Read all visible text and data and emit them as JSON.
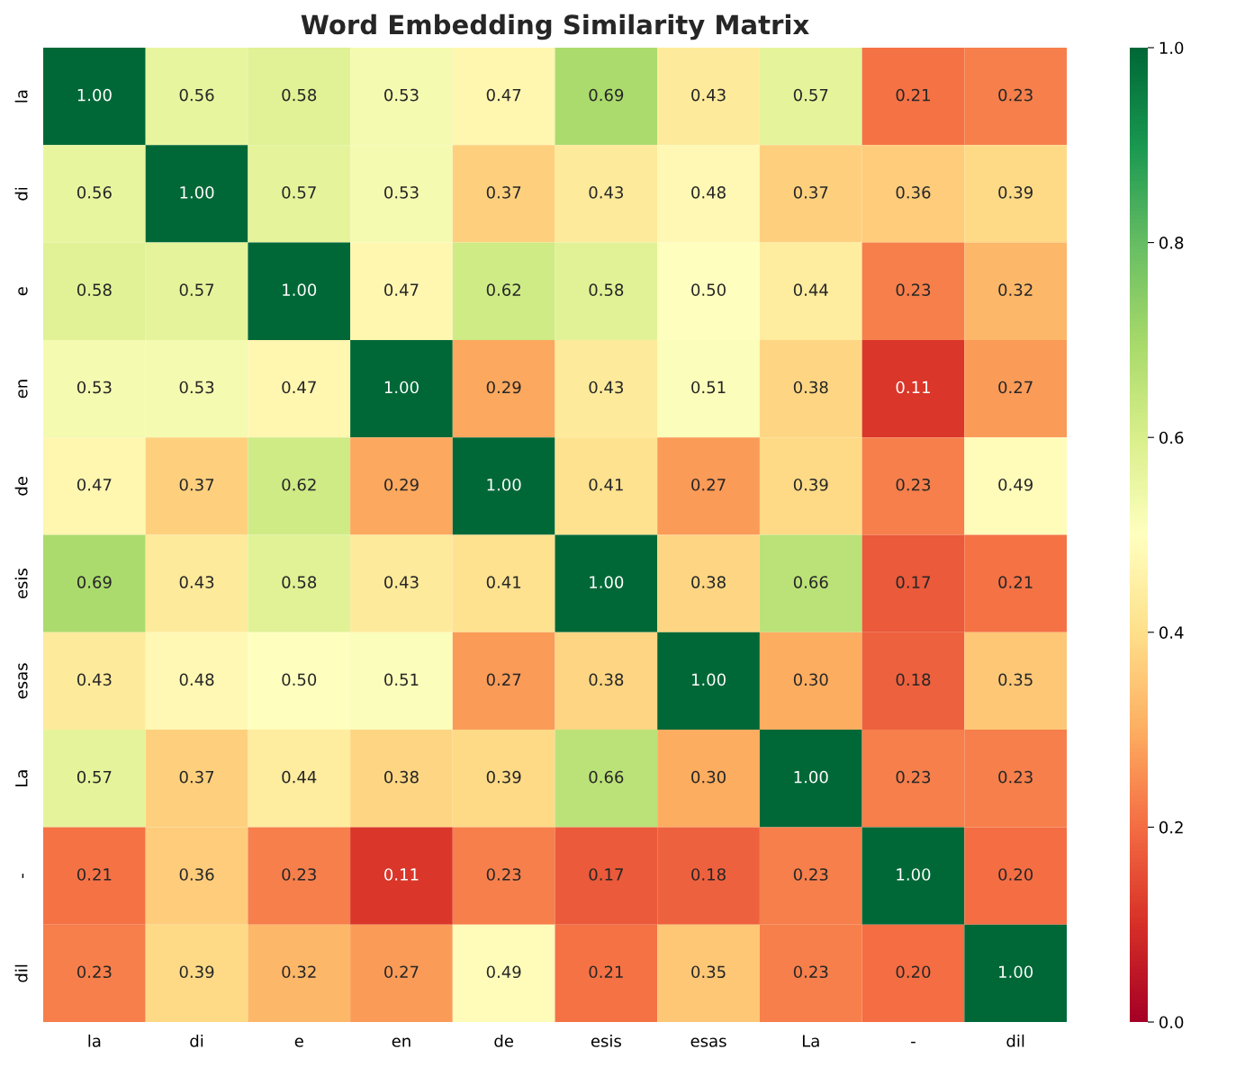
{
  "chart_data": {
    "type": "heatmap",
    "title": "Word Embedding Similarity Matrix",
    "categories": [
      "la",
      "di",
      "e",
      "en",
      "de",
      "esis",
      "esas",
      "La",
      "-",
      "dil"
    ],
    "y_categories": [
      "la",
      "di",
      "e",
      "en",
      "de",
      "esis",
      "esas",
      "La",
      "-",
      "dil"
    ],
    "cells": [
      [
        1.0,
        0.56,
        0.58,
        0.53,
        0.47,
        0.69,
        0.43,
        0.57,
        0.21,
        0.23
      ],
      [
        0.56,
        1.0,
        0.57,
        0.53,
        0.37,
        0.43,
        0.48,
        0.37,
        0.36,
        0.39
      ],
      [
        0.58,
        0.57,
        1.0,
        0.47,
        0.62,
        0.58,
        0.5,
        0.44,
        0.23,
        0.32
      ],
      [
        0.53,
        0.53,
        0.47,
        1.0,
        0.29,
        0.43,
        0.51,
        0.38,
        0.11,
        0.27
      ],
      [
        0.47,
        0.37,
        0.62,
        0.29,
        1.0,
        0.41,
        0.27,
        0.39,
        0.23,
        0.49
      ],
      [
        0.69,
        0.43,
        0.58,
        0.43,
        0.41,
        1.0,
        0.38,
        0.66,
        0.17,
        0.21
      ],
      [
        0.43,
        0.48,
        0.5,
        0.51,
        0.27,
        0.38,
        1.0,
        0.3,
        0.18,
        0.35
      ],
      [
        0.57,
        0.37,
        0.44,
        0.38,
        0.39,
        0.66,
        0.3,
        1.0,
        0.23,
        0.23
      ],
      [
        0.21,
        0.36,
        0.23,
        0.11,
        0.23,
        0.17,
        0.18,
        0.23,
        1.0,
        0.2
      ],
      [
        0.23,
        0.39,
        0.32,
        0.27,
        0.49,
        0.21,
        0.35,
        0.23,
        0.2,
        1.0
      ]
    ],
    "cell_labels": [
      [
        "1.00",
        "0.56",
        "0.58",
        "0.53",
        "0.47",
        "0.69",
        "0.43",
        "0.57",
        "0.21",
        "0.23"
      ],
      [
        "0.56",
        "1.00",
        "0.57",
        "0.53",
        "0.37",
        "0.43",
        "0.48",
        "0.37",
        "0.36",
        "0.39"
      ],
      [
        "0.58",
        "0.57",
        "1.00",
        "0.47",
        "0.62",
        "0.58",
        "0.50",
        "0.44",
        "0.23",
        "0.32"
      ],
      [
        "0.53",
        "0.53",
        "0.47",
        "1.00",
        "0.29",
        "0.43",
        "0.51",
        "0.38",
        "0.11",
        "0.27"
      ],
      [
        "0.47",
        "0.37",
        "0.62",
        "0.29",
        "1.00",
        "0.41",
        "0.27",
        "0.39",
        "0.23",
        "0.49"
      ],
      [
        "0.69",
        "0.43",
        "0.58",
        "0.43",
        "0.41",
        "1.00",
        "0.38",
        "0.66",
        "0.17",
        "0.21"
      ],
      [
        "0.43",
        "0.48",
        "0.50",
        "0.51",
        "0.27",
        "0.38",
        "1.00",
        "0.30",
        "0.18",
        "0.35"
      ],
      [
        "0.57",
        "0.37",
        "0.44",
        "0.38",
        "0.39",
        "0.66",
        "0.30",
        "1.00",
        "0.23",
        "0.23"
      ],
      [
        "0.21",
        "0.36",
        "0.23",
        "0.11",
        "0.23",
        "0.17",
        "0.18",
        "0.23",
        "1.00",
        "0.20"
      ],
      [
        "0.23",
        "0.39",
        "0.32",
        "0.27",
        "0.49",
        "0.21",
        "0.35",
        "0.23",
        "0.20",
        "1.00"
      ]
    ],
    "clim": [
      0,
      1
    ],
    "cticks": [
      {
        "value": 0,
        "label": "0.0"
      },
      {
        "value": 0.2,
        "label": "0.2"
      },
      {
        "value": 0.4,
        "label": "0.4"
      },
      {
        "value": 0.6,
        "label": "0.6"
      },
      {
        "value": 0.8,
        "label": "0.8"
      },
      {
        "value": 1,
        "label": "1.0"
      }
    ]
  }
}
